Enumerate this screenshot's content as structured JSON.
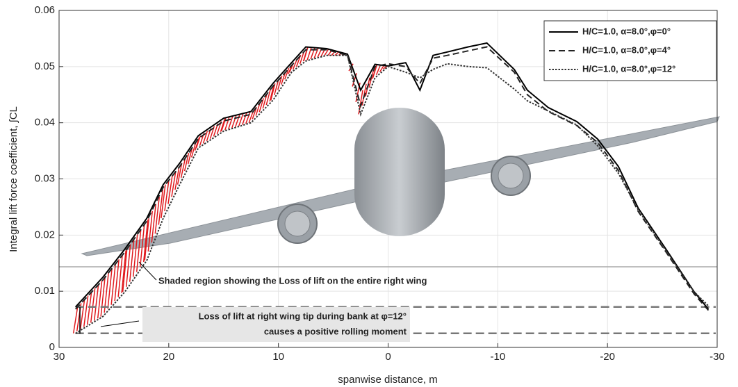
{
  "chart_data": {
    "type": "line",
    "x_label": "spanwise distance, m",
    "y_label": "Integral lift force coefficient, ∫CL",
    "xlim": [
      30,
      -30
    ],
    "xticks": [
      30,
      20,
      10,
      0,
      -10,
      -20,
      -30
    ],
    "ylim": [
      0,
      0.06
    ],
    "yticks": [
      0,
      0.01,
      0.02,
      0.03,
      0.04,
      0.05,
      0.06
    ],
    "grid": true,
    "legend_position": "upper right",
    "x": [
      28.5,
      26,
      24,
      22,
      20.5,
      19,
      17.3,
      15,
      12.5,
      10.5,
      8.8,
      7.5,
      5.6,
      3.7,
      2.5,
      1.2,
      0,
      -1.6,
      -2.9,
      -4.1,
      -5.4,
      -7.3,
      -9,
      -11.5,
      -12.7,
      -14.6,
      -17.2,
      -19.1,
      -21,
      -22.8,
      -25.4,
      -27.9,
      -29.2
    ],
    "series": [
      {
        "name": "H/C=1.0, α=8.0°,φ=0°",
        "color": "#000000",
        "dash": "solid",
        "values": [
          0.0072,
          0.0125,
          0.0175,
          0.023,
          0.029,
          0.0328,
          0.0377,
          0.0408,
          0.042,
          0.047,
          0.0507,
          0.0535,
          0.0532,
          0.0522,
          0.0458,
          0.0504,
          0.0501,
          0.0507,
          0.0458,
          0.052,
          0.0526,
          0.0535,
          0.0542,
          0.0495,
          0.0458,
          0.0427,
          0.0402,
          0.0371,
          0.0322,
          0.0248,
          0.0173,
          0.0099,
          0.0068
        ]
      },
      {
        "name": "H/C=1.0, α=8.0°,φ=4°",
        "color": "#222222",
        "dash": "dashed",
        "values": [
          0.0068,
          0.012,
          0.017,
          0.0225,
          0.0285,
          0.0322,
          0.0372,
          0.0403,
          0.0415,
          0.0465,
          0.0502,
          0.053,
          0.053,
          0.052,
          0.043,
          0.05,
          0.0505,
          0.05,
          0.047,
          0.0515,
          0.052,
          0.0528,
          0.0535,
          0.049,
          0.045,
          0.042,
          0.0395,
          0.0365,
          0.0315,
          0.0242,
          0.0168,
          0.0095,
          0.0066
        ]
      },
      {
        "name": "H/C=1.0, α=8.0°,φ=12°",
        "color": "#333333",
        "dash": "dotted",
        "values": [
          0.0025,
          0.0055,
          0.0099,
          0.0155,
          0.023,
          0.029,
          0.0355,
          0.0385,
          0.04,
          0.044,
          0.049,
          0.051,
          0.052,
          0.052,
          0.0415,
          0.048,
          0.05,
          0.049,
          0.048,
          0.0495,
          0.0505,
          0.05,
          0.0498,
          0.046,
          0.0439,
          0.0421,
          0.0396,
          0.0359,
          0.031,
          0.0245,
          0.017,
          0.0099,
          0.0074
        ]
      }
    ],
    "annotations": [
      "Shaded region showing the Loss of lift on the entire right wing",
      "Loss of lift at right wing tip during bank at φ=12°",
      "causes a positive rolling moment"
    ]
  }
}
